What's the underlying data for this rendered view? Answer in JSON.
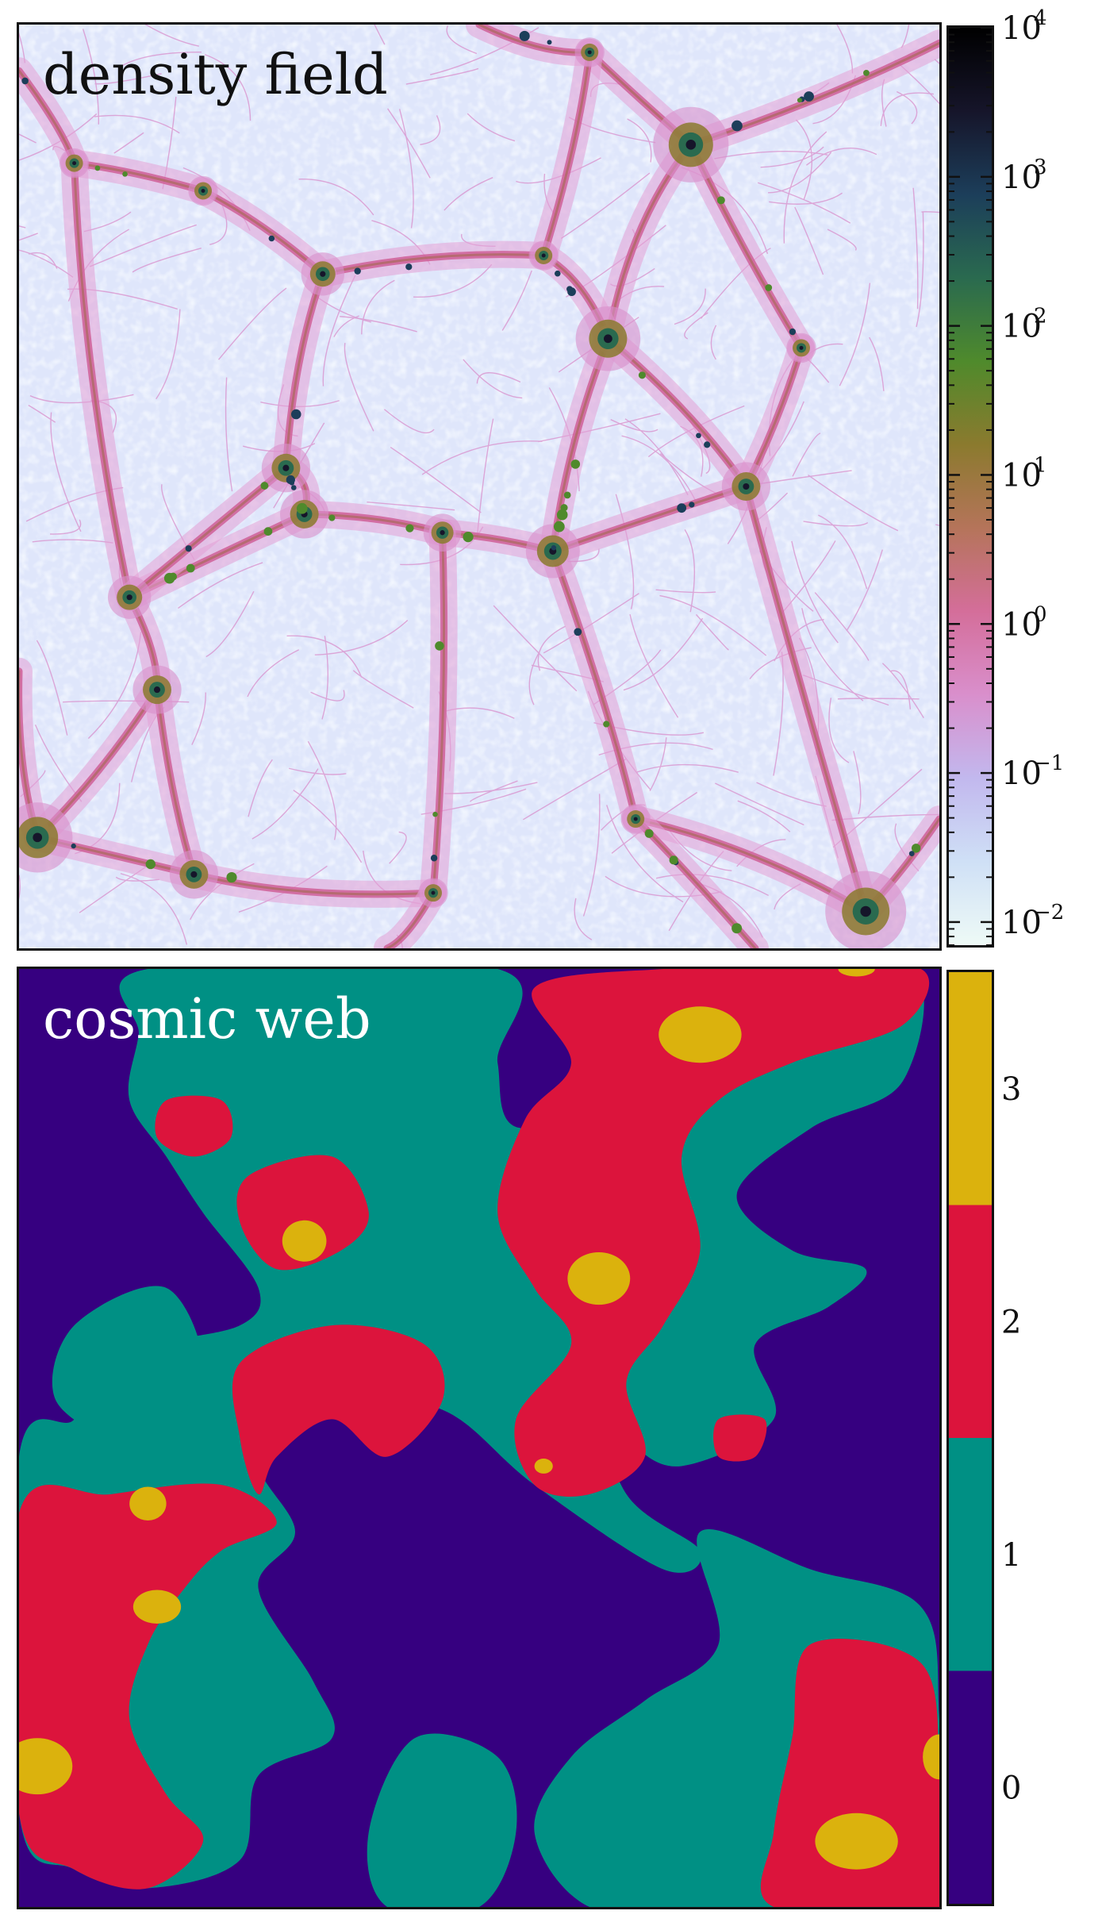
{
  "chart_data": [
    {
      "type": "heatmap",
      "title": "density field",
      "colorbar": {
        "scale": "log",
        "range": [
          0.007,
          10000
        ],
        "ticks": [
          {
            "base": "10",
            "exp": "4"
          },
          {
            "base": "10",
            "exp": "3"
          },
          {
            "base": "10",
            "exp": "2"
          },
          {
            "base": "10",
            "exp": "1"
          },
          {
            "base": "10",
            "exp": "0"
          },
          {
            "base": "10",
            "exp": "−1"
          },
          {
            "base": "10",
            "exp": "−2"
          }
        ],
        "colors": [
          "#eefaf6",
          "#cfe0f6",
          "#c2b8ee",
          "#d98fcc",
          "#d46e9a",
          "#b5745a",
          "#8b7a2e",
          "#4f8a2c",
          "#2a6a4f",
          "#1c3e5a",
          "#16152a",
          "#000000"
        ]
      },
      "axes_ticks_shown": false
    },
    {
      "type": "heatmap",
      "title": "cosmic web",
      "categories": [
        "0",
        "1",
        "2",
        "3"
      ],
      "colors": {
        "0": "#360080",
        "1": "#009084",
        "2": "#dc143c",
        "3": "#dbb20d"
      },
      "axes_ticks_shown": false
    }
  ]
}
